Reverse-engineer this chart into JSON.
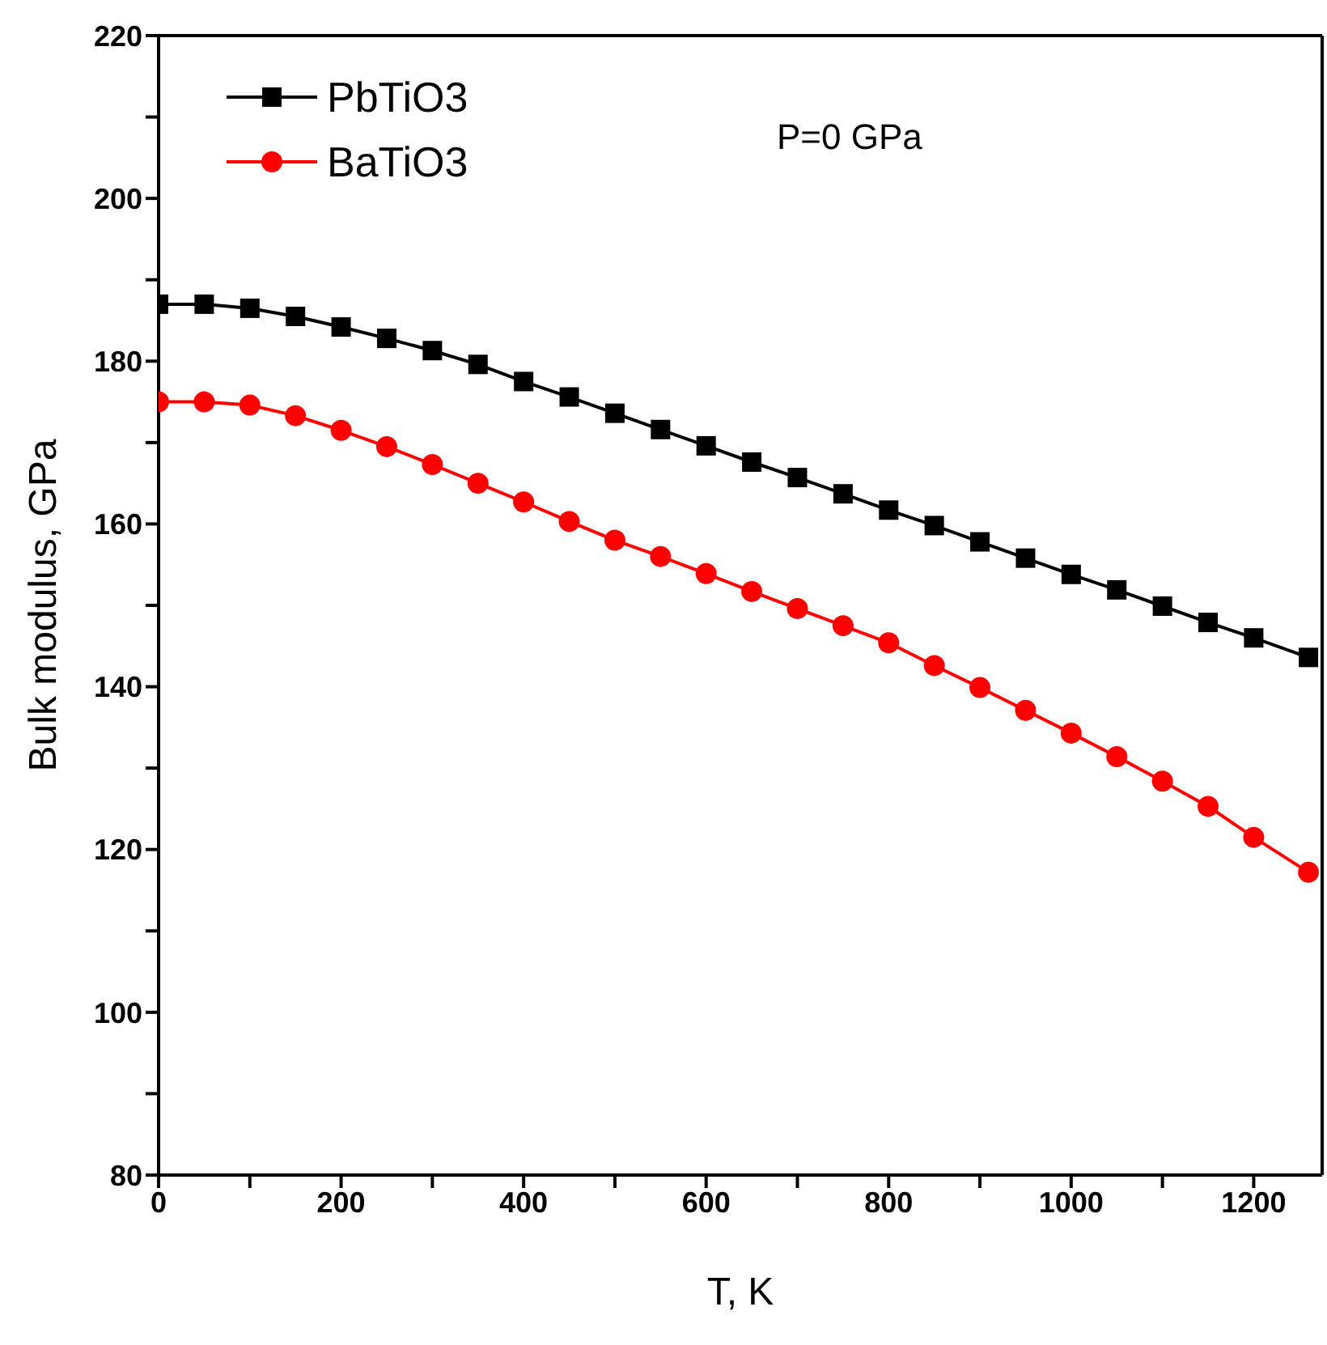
{
  "chart_data": {
    "type": "line",
    "xlabel": "T, K",
    "ylabel": "Bulk modulus, GPa",
    "annotations": [
      "P=0 GPa"
    ],
    "x": [
      0,
      50,
      100,
      150,
      200,
      250,
      300,
      350,
      400,
      450,
      500,
      550,
      600,
      650,
      700,
      750,
      800,
      850,
      900,
      950,
      1000,
      1050,
      1100,
      1150,
      1200,
      1260
    ],
    "series": [
      {
        "name": "PbTiO3",
        "color": "#000000",
        "marker": "square",
        "values": [
          187,
          187,
          186.5,
          185.5,
          184.2,
          182.8,
          181.3,
          179.6,
          177.5,
          175.6,
          173.6,
          171.6,
          169.6,
          167.6,
          165.7,
          163.7,
          161.7,
          159.8,
          157.8,
          155.8,
          153.8,
          151.9,
          149.9,
          147.9,
          146,
          143.6
        ]
      },
      {
        "name": "BaTiO3",
        "color": "#ff0000",
        "marker": "circle",
        "values": [
          175,
          175,
          174.6,
          173.3,
          171.5,
          169.5,
          167.3,
          165,
          162.7,
          160.3,
          158,
          156,
          153.9,
          151.7,
          149.6,
          147.5,
          145.4,
          142.6,
          139.9,
          137.1,
          134.3,
          131.4,
          128.4,
          125.3,
          121.5,
          117.2
        ]
      }
    ],
    "xlim": [
      0,
      1275
    ],
    "ylim": [
      80,
      220
    ],
    "xticks": [
      0,
      {
        "value": 100,
        "label": null
      },
      200,
      {
        "value": 300,
        "label": null
      },
      400,
      {
        "value": 500,
        "label": null
      },
      600,
      {
        "value": 700,
        "label": null
      },
      800,
      {
        "value": 900,
        "label": null
      },
      1000,
      {
        "value": 1100,
        "label": null
      },
      1200
    ],
    "yticks": [
      80,
      {
        "value": 90,
        "label": null
      },
      100,
      {
        "value": 110,
        "label": null
      },
      120,
      {
        "value": 130,
        "label": null
      },
      140,
      {
        "value": 150,
        "label": null
      },
      160,
      {
        "value": 170,
        "label": null
      },
      180,
      {
        "value": 190,
        "label": null
      },
      200,
      {
        "value": 210,
        "label": null
      },
      220
    ],
    "grid": false,
    "legend": "top left"
  }
}
